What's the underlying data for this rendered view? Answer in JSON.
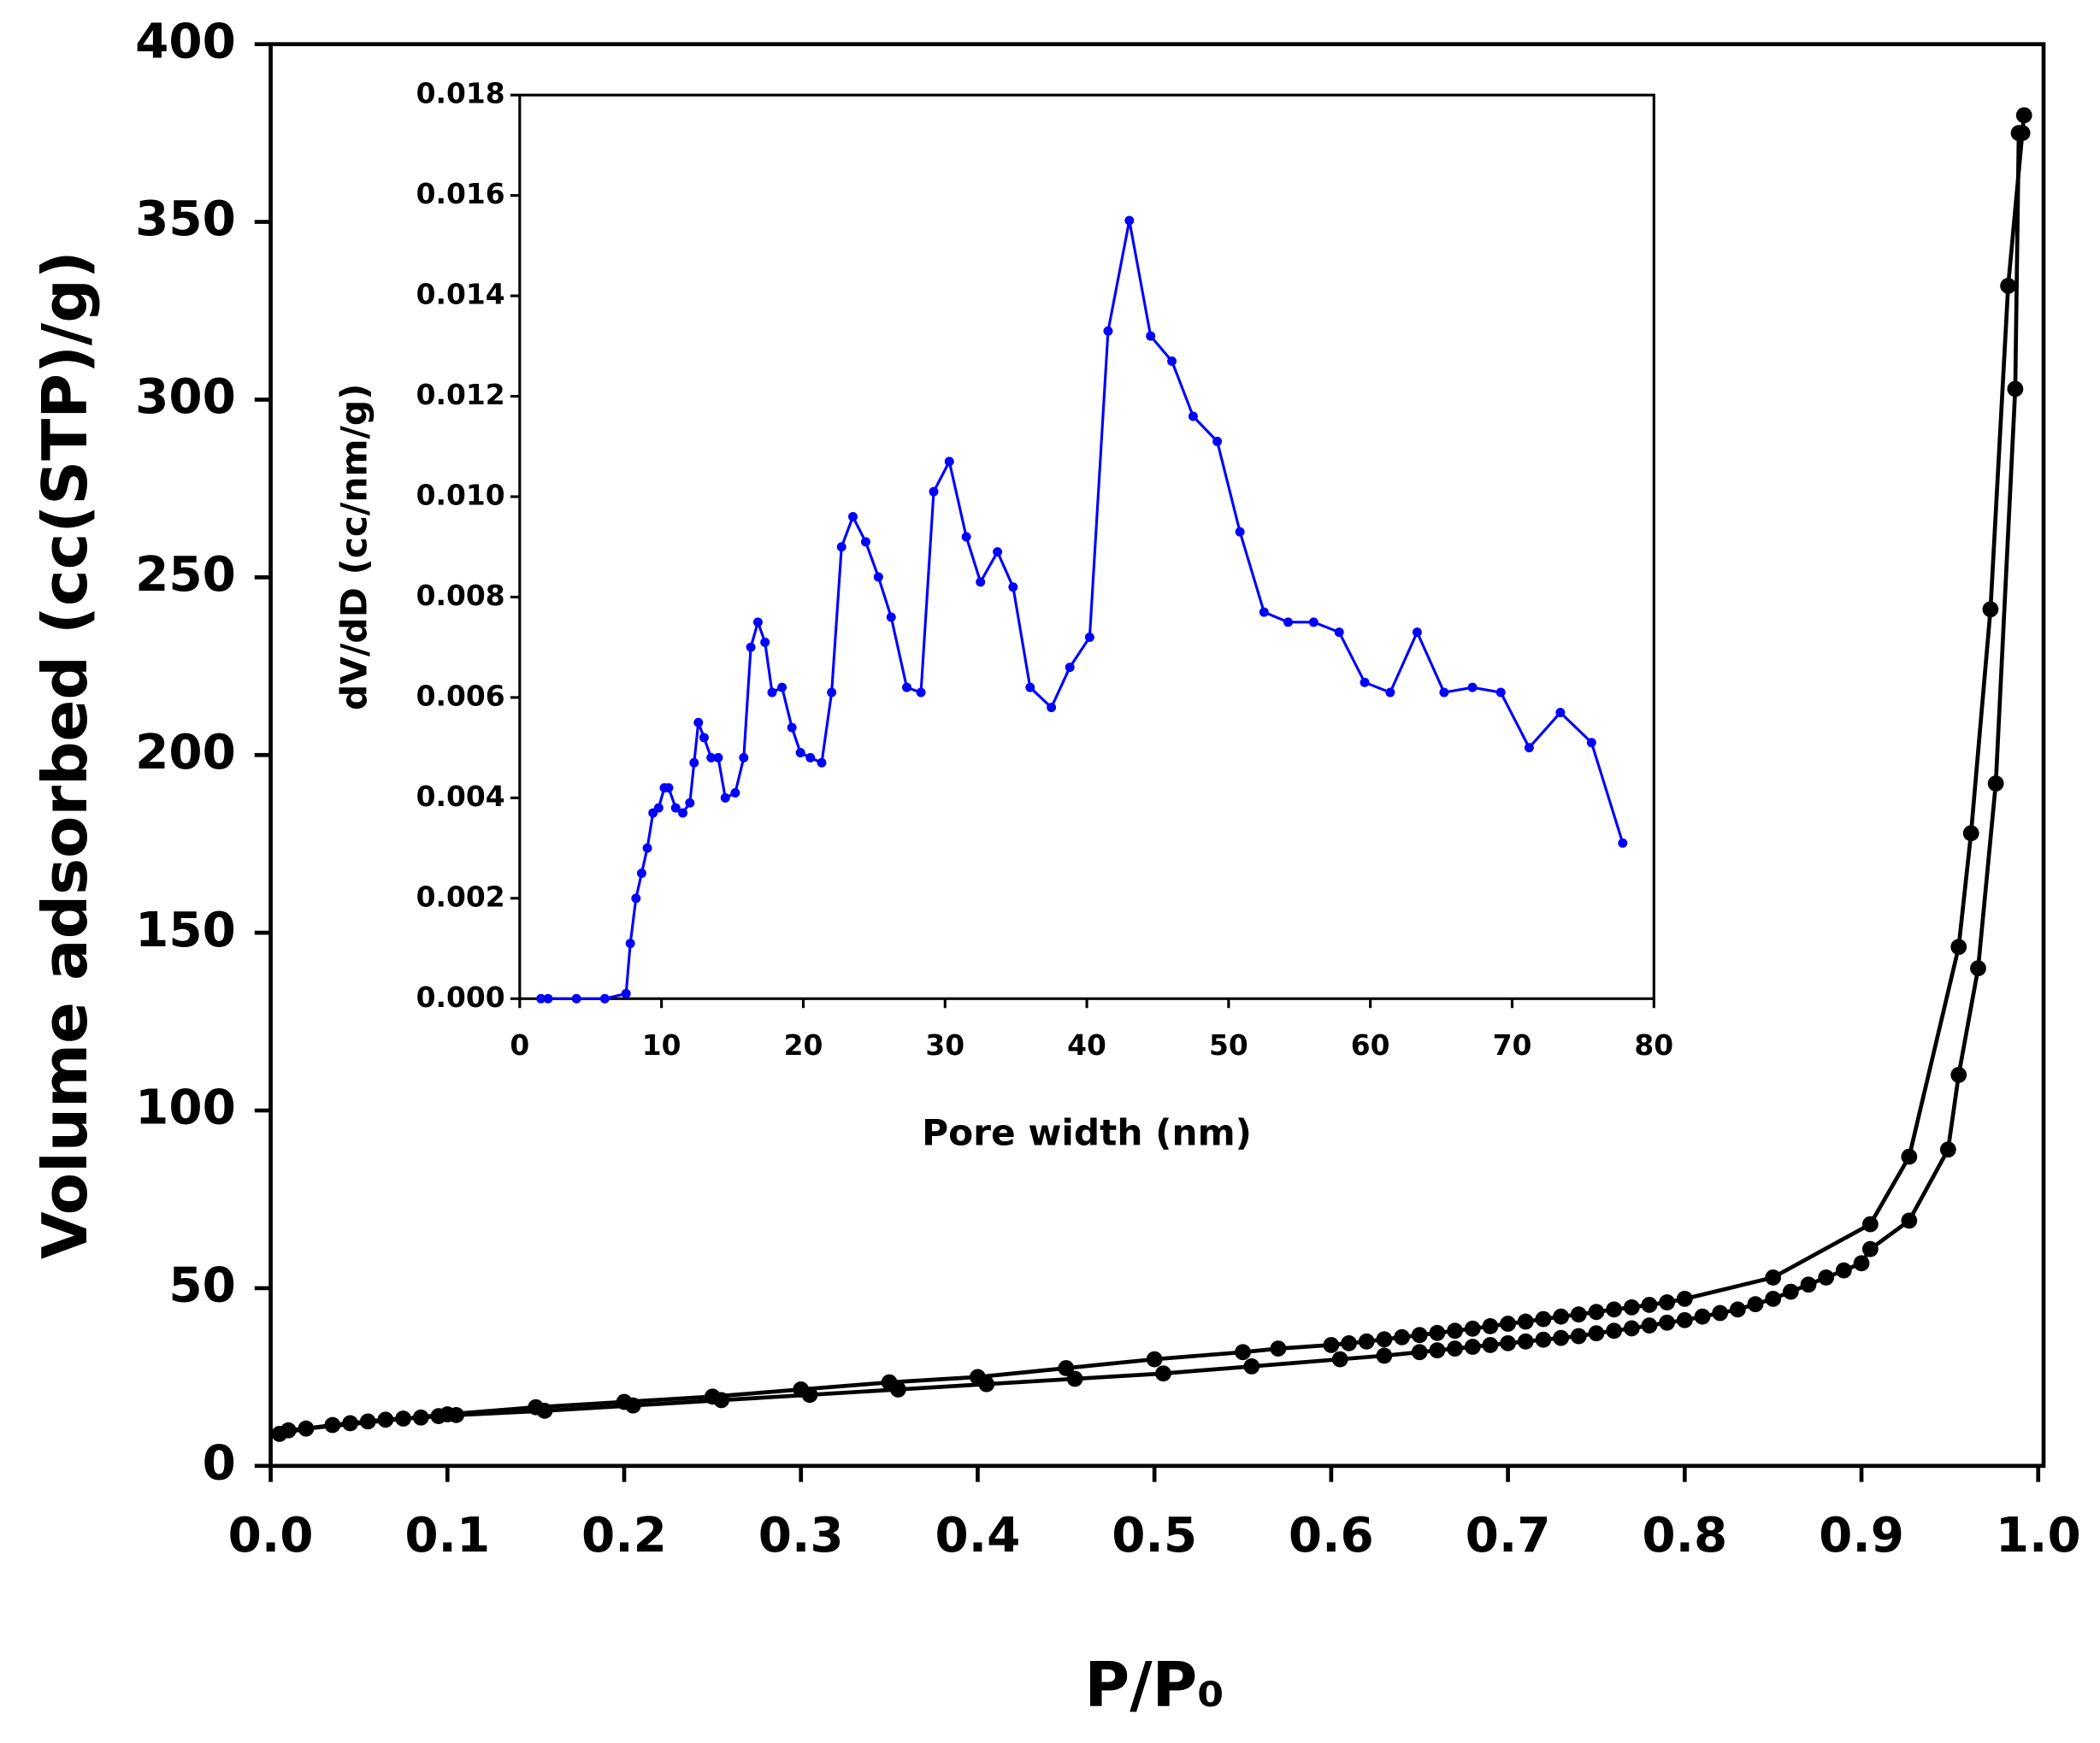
{
  "chart_data": [
    {
      "type": "line",
      "xlabel": "P/P₀",
      "ylabel": "Volume adsorbed (cc(STP)/g)",
      "xlim": [
        0,
        1
      ],
      "ylim": [
        0,
        400
      ],
      "xticks": [
        {
          "value": 0,
          "label": "0.0"
        },
        0.1,
        0.2,
        0.3,
        0.4,
        0.5,
        0.6,
        0.7,
        0.8,
        0.9,
        {
          "value": 1,
          "label": "1.0"
        }
      ],
      "yticks": [
        0,
        50,
        100,
        150,
        200,
        250,
        300,
        350,
        400
      ],
      "markers": true,
      "series": [
        {
          "color": "#000000",
          "x": [
            0.005,
            0.02,
            0.035,
            0.045,
            0.055,
            0.065,
            0.075,
            0.085,
            0.095,
            0.105,
            0.155,
            0.205,
            0.255,
            0.305,
            0.355,
            0.405,
            0.455,
            0.505,
            0.555,
            0.605,
            0.63,
            0.65,
            0.66,
            0.67,
            0.68,
            0.69,
            0.7,
            0.71,
            0.72,
            0.73,
            0.74,
            0.75,
            0.76,
            0.77,
            0.78,
            0.79,
            0.8,
            0.81,
            0.82,
            0.83,
            0.84,
            0.85,
            0.86,
            0.87,
            0.88,
            0.89,
            0.9,
            0.905,
            0.927,
            0.949,
            0.955,
            0.966,
            0.976,
            0.987,
            0.989
          ],
          "values": [
            9,
            10.5,
            11.5,
            12,
            12.5,
            13,
            13.3,
            13.6,
            14,
            14.3,
            15.5,
            17,
            18.5,
            20,
            21.5,
            23,
            24.5,
            26,
            28,
            30,
            31,
            32,
            32.5,
            33,
            33.5,
            34,
            34.5,
            35,
            35.5,
            36,
            36.5,
            37.3,
            38,
            38.7,
            39.5,
            40.3,
            41,
            42,
            43,
            44,
            45.5,
            47,
            49,
            51,
            53,
            55,
            57,
            61,
            69,
            89,
            110,
            140,
            192,
            303,
            375
          ]
        },
        {
          "color": "#000000",
          "x": [
            0.992,
            0.991,
            0.983,
            0.973,
            0.962,
            0.955,
            0.927,
            0.905,
            0.85,
            0.8,
            0.79,
            0.78,
            0.77,
            0.76,
            0.75,
            0.74,
            0.73,
            0.72,
            0.71,
            0.7,
            0.69,
            0.68,
            0.67,
            0.66,
            0.65,
            0.64,
            0.63,
            0.62,
            0.61,
            0.6,
            0.57,
            0.55,
            0.5,
            0.45,
            0.4,
            0.35,
            0.3,
            0.25,
            0.2,
            0.15,
            0.1,
            0.01
          ],
          "values": [
            380,
            375,
            332,
            241,
            178,
            146,
            87,
            68,
            53,
            47,
            46,
            45.3,
            44.6,
            44,
            43.3,
            42.6,
            42,
            41.3,
            40.6,
            40,
            39.3,
            38.6,
            38,
            37.4,
            36.8,
            36.2,
            35.6,
            35,
            34.5,
            34,
            33,
            32,
            30,
            27.5,
            25,
            23.5,
            21.5,
            19.5,
            18,
            16.5,
            14.5,
            10
          ]
        }
      ]
    },
    {
      "type": "line",
      "xlabel": "Pore width (nm)",
      "ylabel": "dV/dD (cc/nm/g)",
      "xlim": [
        0,
        80
      ],
      "ylim": [
        0,
        0.018
      ],
      "xticks": [
        0,
        10,
        20,
        30,
        40,
        50,
        60,
        70,
        80
      ],
      "yticks": [
        {
          "value": 0,
          "label": "0.000"
        },
        {
          "value": 0.002,
          "label": "0.002"
        },
        {
          "value": 0.004,
          "label": "0.004"
        },
        {
          "value": 0.006,
          "label": "0.006"
        },
        {
          "value": 0.008,
          "label": "0.008"
        },
        {
          "value": 0.01,
          "label": "0.010"
        },
        {
          "value": 0.012,
          "label": "0.012"
        },
        {
          "value": 0.014,
          "label": "0.014"
        },
        {
          "value": 0.016,
          "label": "0.016"
        },
        {
          "value": 0.018,
          "label": "0.018"
        }
      ],
      "markers": true,
      "series": [
        {
          "color": "#0000ff",
          "x": [
            1.5,
            2,
            4,
            6,
            7.5,
            7.8,
            8.2,
            8.6,
            9,
            9.4,
            9.8,
            10.2,
            10.5,
            11,
            11.5,
            12,
            12.3,
            12.6,
            13,
            13.5,
            14,
            14.5,
            15.2,
            15.8,
            16.3,
            16.8,
            17.3,
            17.8,
            18.5,
            19.2,
            19.8,
            20.5,
            21.3,
            22,
            22.7,
            23.5,
            24.4,
            25.3,
            26.2,
            27.3,
            28.3,
            29.2,
            30.3,
            31.5,
            32.5,
            33.7,
            34.8,
            36,
            37.5,
            38.8,
            40.2,
            41.5,
            43,
            44.5,
            46,
            47.5,
            49.2,
            50.8,
            52.5,
            54.2,
            56,
            57.8,
            59.6,
            61.4,
            63.3,
            65.2,
            67.2,
            69.2,
            71.2,
            73.4,
            75.6,
            77.8
          ],
          "values": [
            0,
            0,
            0,
            0,
            0.0001,
            0.0011,
            0.002,
            0.0025,
            0.003,
            0.0037,
            0.0038,
            0.0042,
            0.0042,
            0.0038,
            0.0037,
            0.0039,
            0.0047,
            0.0055,
            0.0052,
            0.0048,
            0.0048,
            0.004,
            0.0041,
            0.0048,
            0.007,
            0.0075,
            0.0071,
            0.0061,
            0.0062,
            0.0054,
            0.0049,
            0.0048,
            0.0047,
            0.0061,
            0.009,
            0.0096,
            0.0091,
            0.0084,
            0.0076,
            0.0062,
            0.0061,
            0.0101,
            0.0107,
            0.0092,
            0.0083,
            0.0089,
            0.0082,
            0.0062,
            0.0058,
            0.0066,
            0.0072,
            0.0133,
            0.0155,
            0.0132,
            0.0127,
            0.0116,
            0.0111,
            0.0093,
            0.0077,
            0.0075,
            0.0075,
            0.0073,
            0.0063,
            0.0061,
            0.0073,
            0.0061,
            0.0062,
            0.0061,
            0.005,
            0.0057,
            0.0051,
            0.0031
          ]
        }
      ]
    }
  ]
}
